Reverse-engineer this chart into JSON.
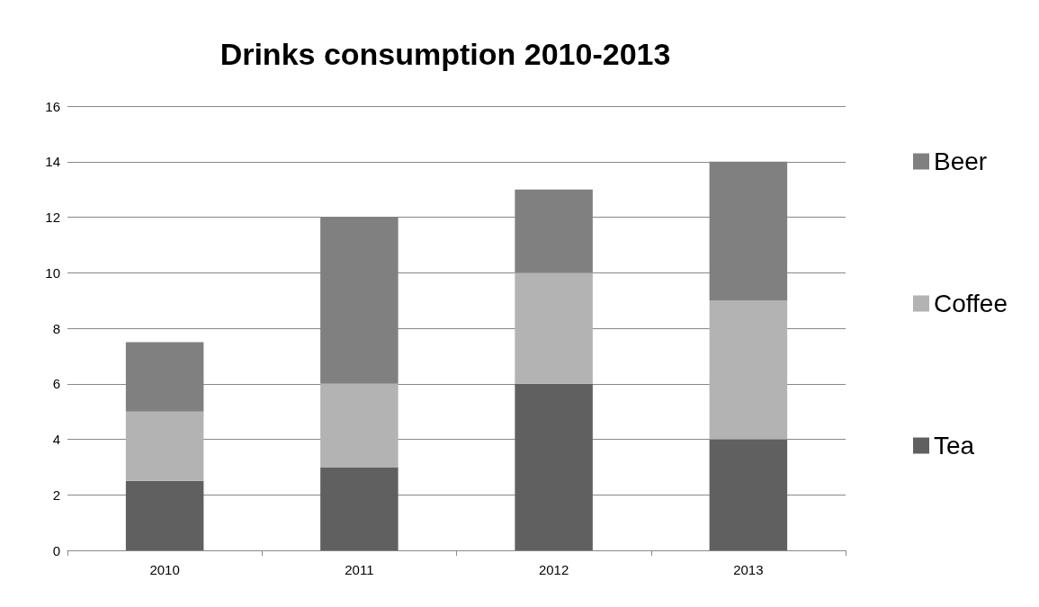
{
  "chart_data": {
    "type": "bar",
    "title": "Drinks consumption 2010-2013",
    "categories": [
      "2010",
      "2011",
      "2012",
      "2013"
    ],
    "series": [
      {
        "name": "Tea",
        "color": "#606060",
        "values": [
          2.5,
          3,
          6,
          4
        ]
      },
      {
        "name": "Coffee",
        "color": "#b3b3b3",
        "values": [
          2.5,
          3,
          4,
          5
        ]
      },
      {
        "name": "Beer",
        "color": "#808080",
        "values": [
          2.5,
          6,
          3,
          5
        ]
      }
    ],
    "stacked": true,
    "ylim": [
      0,
      16
    ],
    "yticks": [
      0,
      2,
      4,
      6,
      8,
      10,
      12,
      14,
      16
    ],
    "grid": "y",
    "legend": "right"
  }
}
